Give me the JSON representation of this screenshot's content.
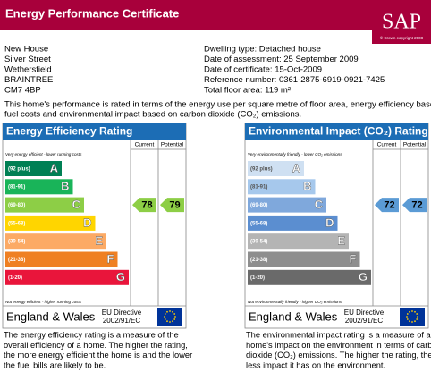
{
  "header": {
    "title": "Energy Performance Certificate",
    "logo": "SAP",
    "copyright": "© Crown copyright 2008"
  },
  "address": [
    "New House",
    "Silver Street",
    "Wethersfield",
    "BRAINTREE",
    "CM7 4BP"
  ],
  "details": [
    "Dwelling type: Detached house",
    "Date of assessment: 25 September 2009",
    "Date of certificate: 15-Oct-2009",
    "Reference number: 0361-2875-6919-0921-7425",
    "Total floor area: 119 m²"
  ],
  "intro": [
    "This home's performance is rated in terms of the energy use per square metre of floor area, energy efficiency based on",
    "fuel costs and environmental impact based on carbon dioxide (CO₂) emissions."
  ],
  "panels": [
    {
      "title": "Energy Efficiency Rating",
      "column_headers": [
        "Current",
        "Potential"
      ],
      "top_note": "Very energy efficient - lower running costs",
      "bands": [
        {
          "range": "(92 plus)",
          "letter": "A"
        },
        {
          "range": "(81-91)",
          "letter": "B"
        },
        {
          "range": "(69-80)",
          "letter": "C"
        },
        {
          "range": "(55-68)",
          "letter": "D"
        },
        {
          "range": "(39-54)",
          "letter": "E"
        },
        {
          "range": "(21-38)",
          "letter": "F"
        },
        {
          "range": "(1-20)",
          "letter": "G"
        }
      ],
      "bottom_note": "Not energy efficient - higher running costs",
      "region": "England & Wales",
      "directive": [
        "EU Directive",
        "2002/91/EC"
      ],
      "current": 78,
      "potential": 79,
      "description": [
        "The energy efficiency rating is a measure of the",
        "overall efficiency of a home. The higher the rating,",
        "the more energy efficient the home is and the lower",
        "the fuel bills are likely to be."
      ]
    },
    {
      "title": "Environmental Impact (CO₂) Rating",
      "column_headers": [
        "Current",
        "Potential"
      ],
      "top_note": "Very environmentally friendly - lower CO₂ emissions",
      "bands": [
        {
          "range": "(92 plus)",
          "letter": "A"
        },
        {
          "range": "(81-91)",
          "letter": "B"
        },
        {
          "range": "(69-80)",
          "letter": "C"
        },
        {
          "range": "(55-68)",
          "letter": "D"
        },
        {
          "range": "(39-54)",
          "letter": "E"
        },
        {
          "range": "(21-38)",
          "letter": "F"
        },
        {
          "range": "(1-20)",
          "letter": "G"
        }
      ],
      "bottom_note": "Not environmentally friendly - higher CO₂ emissions",
      "region": "England & Wales",
      "directive": [
        "EU Directive",
        "2002/91/EC"
      ],
      "current": 72,
      "potential": 72,
      "description": [
        "The environmental impact rating is a measure of a",
        "home's impact on the environment in terms of carbon",
        "dioxide (CO₂) emissions. The higher the rating, the",
        "less impact it has on the environment."
      ]
    }
  ]
}
